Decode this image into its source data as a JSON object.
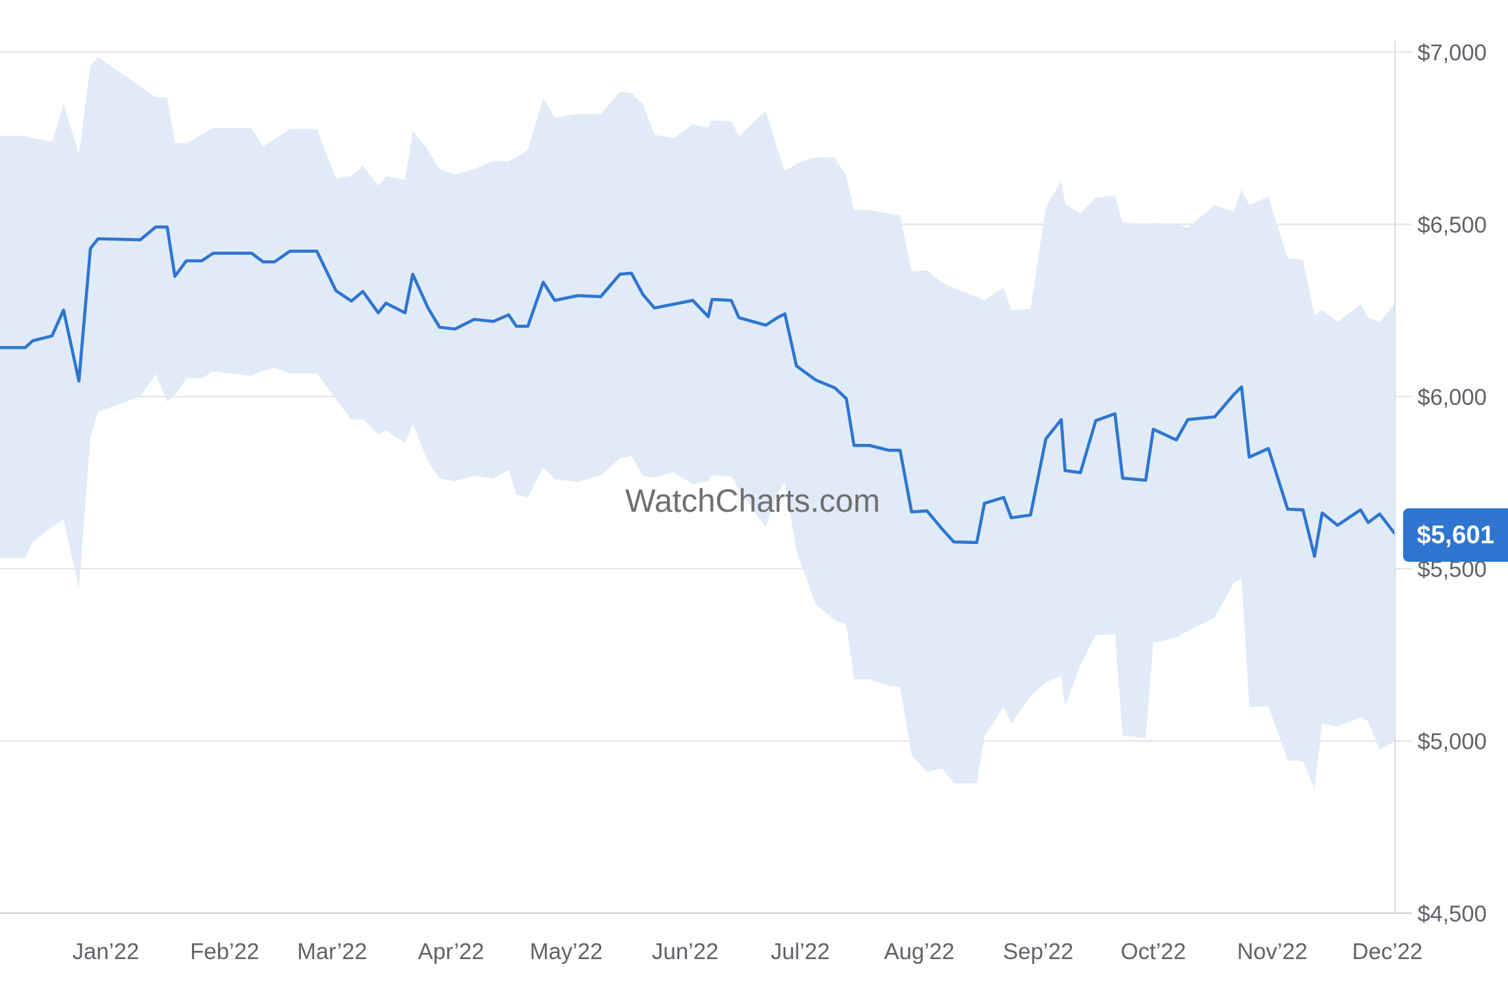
{
  "chart_data": {
    "type": "line",
    "title": "",
    "xlabel": "",
    "ylabel": "",
    "watermark": "WatchCharts.com",
    "ylim": [
      4500,
      7000
    ],
    "yticks": [
      "$4,500",
      "$5,000",
      "$5,500",
      "$6,000",
      "$6,500",
      "$7,000"
    ],
    "ytick_values": [
      4500,
      5000,
      5500,
      6000,
      6500,
      7000
    ],
    "xticks": [
      {
        "label": "Jan’22",
        "date": "2022-01-01"
      },
      {
        "label": "Feb’22",
        "date": "2022-02-01"
      },
      {
        "label": "Mar’22",
        "date": "2022-03-01"
      },
      {
        "label": "Apr’22",
        "date": "2022-04-01"
      },
      {
        "label": "May’22",
        "date": "2022-05-01"
      },
      {
        "label": "Jun’22",
        "date": "2022-06-01"
      },
      {
        "label": "Jul’22",
        "date": "2022-07-01"
      },
      {
        "label": "Aug’22",
        "date": "2022-08-01"
      },
      {
        "label": "Sep’22",
        "date": "2022-09-01"
      },
      {
        "label": "Oct’22",
        "date": "2022-10-01"
      },
      {
        "label": "Nov’22",
        "date": "2022-11-01"
      },
      {
        "label": "Dec’22",
        "date": "2022-12-01"
      }
    ],
    "grid": true,
    "colors": {
      "line": "#2e75d0",
      "band": "#e1ebf7",
      "grid": "#e2e2e2",
      "badge": "#2e75d0"
    },
    "current_value_label": "$5,601",
    "dates": [
      "2021-12-04",
      "2021-12-11",
      "2021-12-13",
      "2021-12-18",
      "2021-12-21",
      "2021-12-25",
      "2021-12-28",
      "2021-12-30",
      "2022-01-10",
      "2022-01-14",
      "2022-01-17",
      "2022-01-19",
      "2022-01-22",
      "2022-01-26",
      "2022-01-29",
      "2022-02-08",
      "2022-02-11",
      "2022-02-14",
      "2022-02-18",
      "2022-02-25",
      "2022-03-02",
      "2022-03-06",
      "2022-03-09",
      "2022-03-13",
      "2022-03-15",
      "2022-03-20",
      "2022-03-22",
      "2022-03-26",
      "2022-03-29",
      "2022-04-02",
      "2022-04-07",
      "2022-04-12",
      "2022-04-16",
      "2022-04-18",
      "2022-04-21",
      "2022-04-25",
      "2022-04-28",
      "2022-05-04",
      "2022-05-10",
      "2022-05-15",
      "2022-05-18",
      "2022-05-21",
      "2022-05-24",
      "2022-05-29",
      "2022-06-03",
      "2022-06-07",
      "2022-06-08",
      "2022-06-13",
      "2022-06-15",
      "2022-06-22",
      "2022-06-25",
      "2022-06-27",
      "2022-06-30",
      "2022-07-05",
      "2022-07-10",
      "2022-07-13",
      "2022-07-15",
      "2022-07-19",
      "2022-07-24",
      "2022-07-27",
      "2022-07-30",
      "2022-08-03",
      "2022-08-07",
      "2022-08-10",
      "2022-08-16",
      "2022-08-18",
      "2022-08-23",
      "2022-08-25",
      "2022-08-30",
      "2022-09-03",
      "2022-09-07",
      "2022-09-08",
      "2022-09-12",
      "2022-09-16",
      "2022-09-21",
      "2022-09-23",
      "2022-09-29",
      "2022-10-01",
      "2022-10-07",
      "2022-10-10",
      "2022-10-17",
      "2022-10-22",
      "2022-10-24",
      "2022-10-26",
      "2022-10-31",
      "2022-11-05",
      "2022-11-09",
      "2022-11-12",
      "2022-11-14",
      "2022-11-18",
      "2022-11-24",
      "2022-11-26",
      "2022-11-29",
      "2022-12-03"
    ],
    "series": [
      {
        "values": [
          6142,
          6142,
          6162,
          6176,
          6251,
          6045,
          6430,
          6458,
          6455,
          6492,
          6492,
          6349,
          6394,
          6394,
          6416,
          6416,
          6391,
          6391,
          6422,
          6422,
          6307,
          6277,
          6305,
          6243,
          6271,
          6243,
          6355,
          6257,
          6201,
          6196,
          6224,
          6218,
          6237,
          6204,
          6204,
          6332,
          6279,
          6293,
          6290,
          6355,
          6358,
          6296,
          6257,
          6268,
          6279,
          6232,
          6282,
          6279,
          6229,
          6207,
          6229,
          6240,
          6089,
          6048,
          6025,
          5994,
          5858,
          5858,
          5844,
          5844,
          5665,
          5668,
          5615,
          5578,
          5576,
          5690,
          5707,
          5648,
          5656,
          5877,
          5933,
          5785,
          5779,
          5930,
          5950,
          5763,
          5757,
          5905,
          5874,
          5933,
          5941,
          6006,
          6028,
          5824,
          5849,
          5673,
          5671,
          5536,
          5662,
          5626,
          5671,
          5634,
          5659,
          5601
        ]
      }
    ],
    "band": {
      "low": [
        5531,
        5531,
        5578,
        5622,
        5643,
        5442,
        5880,
        5955,
        6000,
        6065,
        5985,
        6003,
        6053,
        6053,
        6073,
        6060,
        6075,
        6084,
        6067,
        6067,
        5992,
        5932,
        5935,
        5890,
        5903,
        5865,
        5920,
        5810,
        5762,
        5754,
        5770,
        5762,
        5788,
        5715,
        5707,
        5796,
        5760,
        5752,
        5771,
        5820,
        5827,
        5770,
        5765,
        5780,
        5745,
        5755,
        5771,
        5768,
        5730,
        5620,
        5715,
        5754,
        5550,
        5397,
        5350,
        5338,
        5179,
        5179,
        5160,
        5157,
        4960,
        4910,
        4920,
        4877,
        4877,
        5014,
        5098,
        5051,
        5130,
        5170,
        5190,
        5100,
        5220,
        5307,
        5310,
        5014,
        5009,
        5285,
        5300,
        5320,
        5358,
        5460,
        5470,
        5098,
        5100,
        4944,
        4941,
        4860,
        5050,
        5042,
        5070,
        5056,
        4975,
        5000
      ],
      "high": [
        6757,
        6757,
        6750,
        6740,
        6849,
        6704,
        6960,
        6985,
        6900,
        6869,
        6869,
        6737,
        6736,
        6760,
        6779,
        6779,
        6726,
        6747,
        6777,
        6777,
        6634,
        6640,
        6670,
        6612,
        6640,
        6629,
        6771,
        6715,
        6660,
        6645,
        6660,
        6685,
        6682,
        6695,
        6715,
        6866,
        6810,
        6820,
        6820,
        6885,
        6880,
        6850,
        6760,
        6750,
        6790,
        6780,
        6802,
        6799,
        6755,
        6830,
        6720,
        6655,
        6675,
        6696,
        6693,
        6640,
        6542,
        6542,
        6531,
        6525,
        6363,
        6366,
        6330,
        6315,
        6290,
        6280,
        6316,
        6251,
        6254,
        6550,
        6626,
        6559,
        6531,
        6578,
        6584,
        6506,
        6500,
        6505,
        6500,
        6490,
        6556,
        6536,
        6601,
        6556,
        6580,
        6402,
        6397,
        6235,
        6250,
        6217,
        6268,
        6229,
        6215,
        6271
      ]
    }
  }
}
